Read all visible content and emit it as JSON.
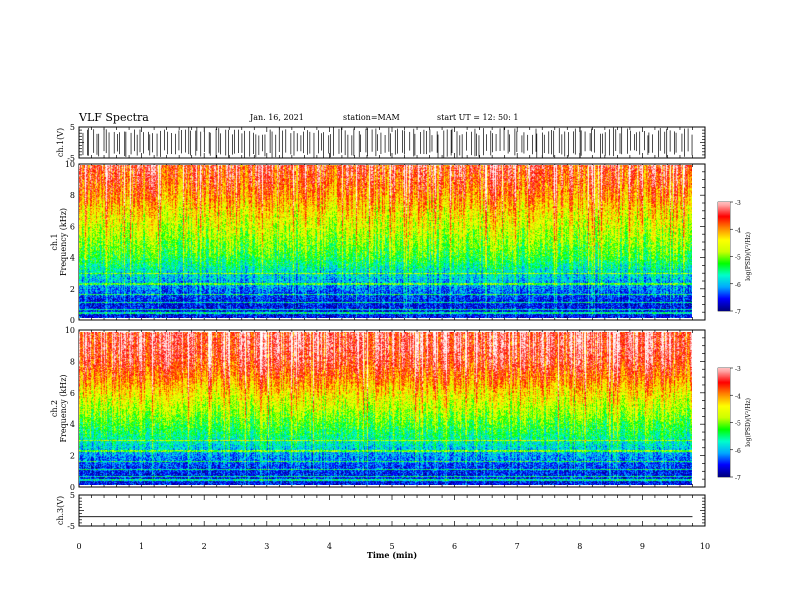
{
  "header": {
    "title": "VLF Spectra",
    "date": "Jan. 16, 2021",
    "station": "station=MAM",
    "start": "start  UT =   12: 50: 1"
  },
  "chart_data": [
    {
      "type": "line",
      "ylabel": "ch.1(V)",
      "ylim": [
        -5,
        5
      ],
      "y_ticks": [
        "5",
        "-5"
      ],
      "description_of_data": "dense vertical impulsive spikes spanning full range",
      "xlim": [
        0,
        10
      ]
    },
    {
      "type": "heatmap",
      "ylabel_top": "ch.1",
      "ylabel": "Frequency  (kHz)",
      "ylim": [
        0,
        10
      ],
      "y_ticks": [
        "0",
        "2",
        "4",
        "6",
        "8",
        "10"
      ],
      "xlim": [
        0,
        9.8
      ],
      "colorbar": {
        "label": "log(PSD)(V²/Hz)",
        "range": [
          -7,
          -3
        ],
        "ticks": [
          "-3",
          "-4",
          "-5",
          "-6",
          "-7"
        ]
      },
      "profile_log_psd_by_freq": [
        [
          0,
          -6.6
        ],
        [
          1,
          -6.6
        ],
        [
          2,
          -6.2
        ],
        [
          3,
          -5.8
        ],
        [
          4,
          -5.3
        ],
        [
          5,
          -5.0
        ],
        [
          6,
          -4.7
        ],
        [
          7,
          -4.4
        ],
        [
          8,
          -4.0
        ],
        [
          9,
          -3.7
        ],
        [
          10,
          -3.5
        ]
      ]
    },
    {
      "type": "heatmap",
      "ylabel_top": "ch.2",
      "ylabel": "Frequency  (kHz)",
      "ylim": [
        0,
        10
      ],
      "y_ticks": [
        "0",
        "2",
        "4",
        "6",
        "8",
        "10"
      ],
      "xlim": [
        0,
        9.8
      ],
      "colorbar": {
        "label": "log(PSD)(V²/Hz)",
        "range": [
          -7,
          -3
        ],
        "ticks": [
          "-3",
          "-4",
          "-5",
          "-6",
          "-7"
        ]
      },
      "profile_log_psd_by_freq": [
        [
          0,
          -6.6
        ],
        [
          1,
          -6.5
        ],
        [
          2,
          -6.1
        ],
        [
          3,
          -5.6
        ],
        [
          4,
          -5.2
        ],
        [
          5,
          -4.8
        ],
        [
          6,
          -4.4
        ],
        [
          7,
          -3.9
        ],
        [
          8,
          -3.5
        ],
        [
          9,
          -3.3
        ],
        [
          10,
          -3.3
        ]
      ]
    },
    {
      "type": "line",
      "ylabel": "ch.3(V)",
      "ylim": [
        -5,
        5
      ],
      "y_ticks": [
        "5",
        "-5"
      ],
      "x": [
        0,
        9.8
      ],
      "y": [
        -2,
        -2
      ],
      "xlim": [
        0,
        10
      ]
    }
  ],
  "x_axis": {
    "label": "Time  (min)",
    "ticks": [
      "0",
      "1",
      "2",
      "3",
      "4",
      "5",
      "6",
      "7",
      "8",
      "9",
      "10"
    ]
  },
  "colors": {
    "colormap": [
      "#000080",
      "#0000ff",
      "#00aaff",
      "#00ffcc",
      "#00ff00",
      "#ccff00",
      "#ffff00",
      "#ff8800",
      "#ff0000",
      "#ffaaaa",
      "#ffffff"
    ]
  }
}
